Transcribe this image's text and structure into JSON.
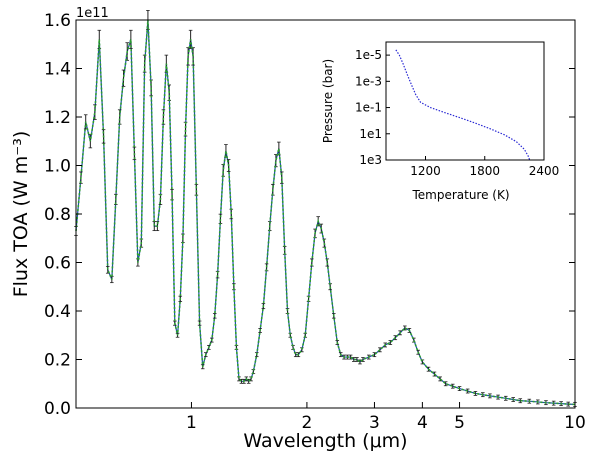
{
  "chart_data": [
    {
      "type": "line",
      "xlabel": "Wavelength (μm)",
      "ylabel": "Flux TOA (W m⁻³)",
      "offset_text": "1e11",
      "x_scale": "log",
      "xlim": [
        0.5,
        10
      ],
      "ylim": [
        0.0,
        1.6
      ],
      "x_ticks": [
        {
          "value": 1,
          "label": "1"
        },
        {
          "value": 2,
          "label": "2"
        },
        {
          "value": 3,
          "label": "3"
        },
        {
          "value": 4,
          "label": "4"
        },
        {
          "value": 5,
          "label": "5"
        },
        {
          "value": 10,
          "label": "10"
        }
      ],
      "y_ticks": [
        {
          "value": 0.0,
          "label": "0.0"
        },
        {
          "value": 0.2,
          "label": "0.2"
        },
        {
          "value": 0.4,
          "label": "0.4"
        },
        {
          "value": 0.6,
          "label": "0.6"
        },
        {
          "value": 0.8,
          "label": "0.8"
        },
        {
          "value": 1.0,
          "label": "1.0"
        },
        {
          "value": 1.2,
          "label": "1.2"
        },
        {
          "value": 1.4,
          "label": "1.4"
        },
        {
          "value": 1.6,
          "label": "1.6"
        }
      ],
      "grid": false,
      "series": [
        {
          "style": "solid-line-with-error-bars",
          "color": "#1f4fa8",
          "x": [
            0.5,
            0.515,
            0.53,
            0.545,
            0.56,
            0.575,
            0.59,
            0.605,
            0.62,
            0.635,
            0.65,
            0.665,
            0.68,
            0.695,
            0.71,
            0.725,
            0.74,
            0.755,
            0.77,
            0.785,
            0.8,
            0.815,
            0.83,
            0.845,
            0.86,
            0.875,
            0.89,
            0.905,
            0.92,
            0.935,
            0.95,
            0.965,
            0.98,
            0.995,
            1.01,
            1.03,
            1.05,
            1.07,
            1.09,
            1.11,
            1.13,
            1.15,
            1.17,
            1.19,
            1.21,
            1.23,
            1.25,
            1.27,
            1.29,
            1.31,
            1.33,
            1.35,
            1.37,
            1.39,
            1.41,
            1.43,
            1.45,
            1.48,
            1.51,
            1.54,
            1.57,
            1.6,
            1.63,
            1.66,
            1.69,
            1.72,
            1.75,
            1.78,
            1.81,
            1.84,
            1.87,
            1.9,
            1.94,
            1.98,
            2.02,
            2.06,
            2.1,
            2.14,
            2.18,
            2.22,
            2.26,
            2.3,
            2.35,
            2.4,
            2.45,
            2.5,
            2.55,
            2.6,
            2.65,
            2.7,
            2.75,
            2.8,
            2.9,
            3.0,
            3.1,
            3.2,
            3.3,
            3.4,
            3.5,
            3.6,
            3.7,
            3.8,
            3.9,
            4.0,
            4.15,
            4.3,
            4.45,
            4.6,
            4.8,
            5.0,
            5.25,
            5.5,
            5.75,
            6.0,
            6.3,
            6.6,
            6.9,
            7.2,
            7.6,
            8.0,
            8.4,
            8.8,
            9.2,
            9.6,
            10.0
          ],
          "y": [
            0.73,
            0.95,
            1.18,
            1.1,
            1.22,
            1.52,
            1.12,
            0.57,
            0.53,
            0.86,
            1.2,
            1.36,
            1.47,
            1.52,
            1.05,
            0.6,
            0.68,
            1.42,
            1.6,
            1.32,
            0.75,
            0.75,
            0.86,
            1.2,
            1.42,
            1.3,
            0.88,
            0.35,
            0.3,
            0.45,
            0.7,
            1.15,
            1.45,
            1.52,
            1.45,
            0.9,
            0.35,
            0.17,
            0.22,
            0.25,
            0.28,
            0.38,
            0.55,
            0.78,
            0.98,
            1.06,
            1.0,
            0.8,
            0.5,
            0.25,
            0.12,
            0.11,
            0.11,
            0.12,
            0.11,
            0.12,
            0.15,
            0.22,
            0.32,
            0.42,
            0.58,
            0.75,
            0.9,
            1.02,
            1.07,
            0.95,
            0.65,
            0.4,
            0.3,
            0.25,
            0.22,
            0.22,
            0.24,
            0.3,
            0.45,
            0.6,
            0.72,
            0.77,
            0.74,
            0.68,
            0.6,
            0.5,
            0.38,
            0.27,
            0.22,
            0.21,
            0.21,
            0.21,
            0.2,
            0.2,
            0.19,
            0.2,
            0.21,
            0.22,
            0.24,
            0.26,
            0.27,
            0.29,
            0.31,
            0.33,
            0.32,
            0.28,
            0.23,
            0.19,
            0.16,
            0.14,
            0.12,
            0.1,
            0.09,
            0.08,
            0.07,
            0.06,
            0.055,
            0.05,
            0.045,
            0.04,
            0.035,
            0.03,
            0.028,
            0.025,
            0.022,
            0.02,
            0.018,
            0.016,
            0.015
          ]
        },
        {
          "style": "green-dotted-line",
          "color": "#2ca02c"
        }
      ]
    },
    {
      "type": "line",
      "xlabel": "Temperature (K)",
      "ylabel": "Pressure (bar)",
      "y_scale": "log",
      "y_inverted": true,
      "xlim": [
        800,
        2400
      ],
      "ylim": [
        1e-06,
        1000.0
      ],
      "x_ticks": [
        {
          "value": 1200,
          "label": "1200"
        },
        {
          "value": 1800,
          "label": "1800"
        },
        {
          "value": 2400,
          "label": "2400"
        }
      ],
      "y_ticks": [
        {
          "value": 1e-05,
          "label": "1e-5"
        },
        {
          "value": 0.001,
          "label": "1e-3"
        },
        {
          "value": 0.1,
          "label": "1e-1"
        },
        {
          "value": 10.0,
          "label": "1e1"
        },
        {
          "value": 1000.0,
          "label": "1e3"
        }
      ],
      "grid": false,
      "series": [
        {
          "style": "dotted-line",
          "color": "#2a2ad4",
          "x": [
            900,
            935,
            975,
            1015,
            1060,
            1100,
            1150,
            1250,
            1400,
            1550,
            1700,
            1850,
            2000,
            2120,
            2200,
            2240,
            2255
          ],
          "y": [
            4e-06,
            1e-05,
            5e-05,
            0.0003,
            0.002,
            0.01,
            0.04,
            0.1,
            0.25,
            0.6,
            1.5,
            4,
            12,
            40,
            150,
            500,
            1000
          ]
        }
      ]
    }
  ]
}
